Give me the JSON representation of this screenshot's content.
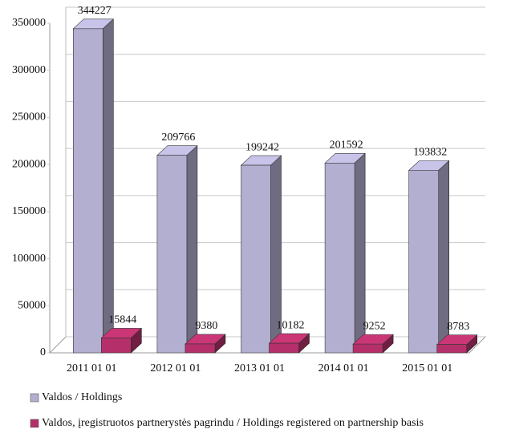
{
  "chart_data": {
    "type": "bar3d",
    "categories": [
      "2011 01 01",
      "2012 01 01",
      "2013 01 01",
      "2014 01 01",
      "2015 01 01"
    ],
    "series": [
      {
        "name": "Valdos / Holdings",
        "color": "#b3afd0",
        "values": [
          344227,
          209766,
          199242,
          201592,
          193832
        ]
      },
      {
        "name": "Valdos, įregistruotos partnerystės pagrindu / Holdings registered on partnership basis",
        "color": "#b5306a",
        "values": [
          15844,
          9380,
          10182,
          9252,
          8783
        ]
      }
    ],
    "ylim": [
      0,
      350000
    ],
    "yticks": [
      0,
      50000,
      100000,
      150000,
      200000,
      250000,
      300000,
      350000
    ],
    "grid": true
  }
}
